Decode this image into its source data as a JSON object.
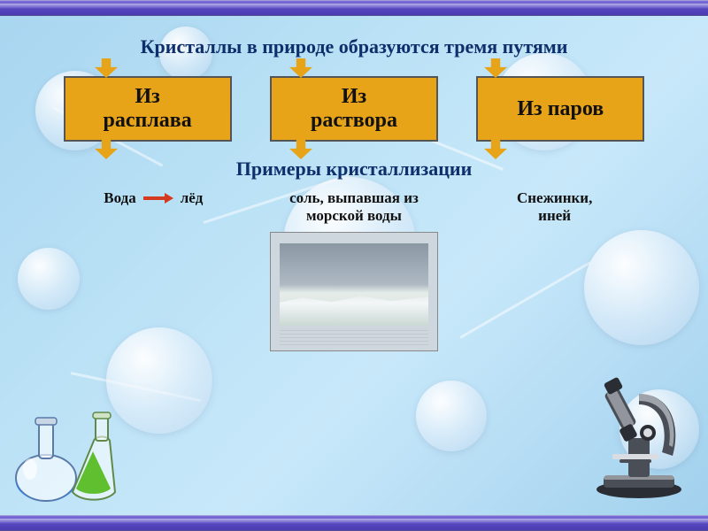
{
  "title": {
    "text": "Кристаллы в природе образуются тремя путями",
    "color": "#0e2f6b",
    "fontsize": 22
  },
  "arrows": {
    "fill": "#e8a418",
    "stroke": "#8a5f0f"
  },
  "boxes": {
    "bg": "#e8a418",
    "border": "#555555",
    "fontsize": 24,
    "color": "#111111",
    "width": 190,
    "height": 74,
    "items": [
      {
        "label": "Из\nрасплава"
      },
      {
        "label": "Из\nраствора"
      },
      {
        "label": "Из паров"
      }
    ]
  },
  "subtitle": {
    "text": "Примеры кристаллизации",
    "color": "#0e2f6b",
    "fontsize": 22
  },
  "examples": {
    "fontsize": 17,
    "color": "#111111",
    "items": [
      {
        "left": "Вода",
        "right": "лёд",
        "arrow_color": "#d43a1e"
      },
      {
        "text": "соль, выпавшая из\nморской воды"
      },
      {
        "text": "Снежинки,\nиней"
      }
    ]
  },
  "frame": {
    "color_top": "#7a6fd8",
    "color_mid": "#5849c2",
    "color_bot": "#4a3bb0"
  },
  "background": {
    "from": "#a8d5f0",
    "to": "#a0d0ed"
  },
  "flasks": {
    "blue": "#2f7de0",
    "green": "#5fbf2e"
  },
  "microscope": {
    "body": "#4a4f57",
    "light": "#d9dde2",
    "accent": "#2a2e34"
  }
}
